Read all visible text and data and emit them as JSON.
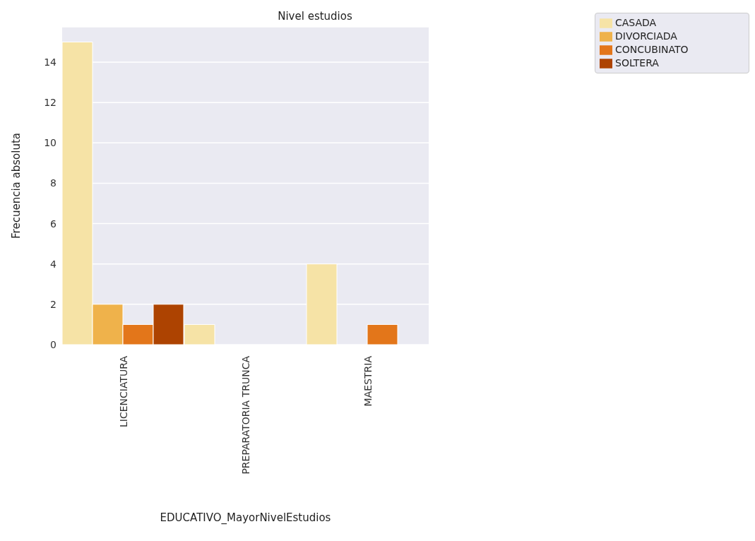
{
  "chart_data": {
    "type": "bar",
    "title": "Nivel estudios",
    "xlabel": "EDUCATIVO_MayorNivelEstudios",
    "ylabel": "Frecuencia absoluta",
    "categories": [
      "LICENCIATURA",
      "PREPARATORIA TRUNCA",
      "MAESTRIA"
    ],
    "series": [
      {
        "name": "CASADA",
        "color": "#f6e3a6",
        "values": [
          15,
          1,
          4
        ]
      },
      {
        "name": "DIVORCIADA",
        "color": "#efb24b",
        "values": [
          2,
          0,
          0
        ]
      },
      {
        "name": "CONCUBINATO",
        "color": "#e3761a",
        "values": [
          1,
          0,
          1
        ]
      },
      {
        "name": "SOLTERA",
        "color": "#ad4301",
        "values": [
          2,
          0,
          0
        ]
      }
    ],
    "ylim": [
      0,
      15.75
    ],
    "yticks": [
      0,
      2,
      4,
      6,
      8,
      10,
      12,
      14
    ],
    "grid": "y",
    "legend": "top right"
  }
}
